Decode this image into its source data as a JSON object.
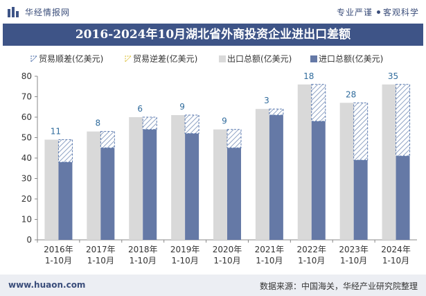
{
  "header": {
    "brand": "华经情报网",
    "tagline_left": "专业严谨",
    "tagline_right": "客观科学",
    "logo_icon": "bar-logo-icon"
  },
  "colors": {
    "title_bg": "#3e5487",
    "export": "#d9d9d9",
    "import": "#6579a6",
    "surplus_stroke": "#5b7ab0",
    "deficit_stroke": "#e0c64a",
    "label": "#2f6b9c"
  },
  "footer": {
    "website": "www.huaon.com",
    "source": "数据来源：中国海关，华经产业研究院整理"
  },
  "chart_data": {
    "type": "bar",
    "title": "2016-2024年10月湖北省外商投资企业进出口差额",
    "categories": [
      "2016年\n1-10月",
      "2017年\n1-10月",
      "2018年\n1-10月",
      "2019年\n1-10月",
      "2020年\n1-10月",
      "2021年\n1-10月",
      "2022年\n1-10月",
      "2023年\n1-10月",
      "2024年\n1-10月"
    ],
    "series": [
      {
        "name": "贸易顺差(亿美元)",
        "values": [
          11,
          8,
          6,
          9,
          9,
          3,
          18,
          28,
          35
        ]
      },
      {
        "name": "贸易逆差(亿美元)",
        "values": [
          0,
          0,
          0,
          0,
          0,
          0,
          0,
          0,
          0
        ]
      },
      {
        "name": "出口总额(亿美元)",
        "values": [
          49,
          53,
          60,
          61,
          54,
          64,
          76,
          67,
          76
        ]
      },
      {
        "name": "进口总额(亿美元)",
        "values": [
          38,
          45,
          54,
          52,
          45,
          61,
          58,
          39,
          41
        ]
      }
    ],
    "data_labels": [
      "11",
      "8",
      "6",
      "9",
      "9",
      "3",
      "18",
      "28",
      "35"
    ],
    "ylim": [
      0,
      80
    ],
    "yticks": [
      0,
      10,
      20,
      30,
      40,
      50,
      60,
      70,
      80
    ],
    "xlabel": "",
    "ylabel": "",
    "grid": false,
    "legend_position": "top-left"
  }
}
